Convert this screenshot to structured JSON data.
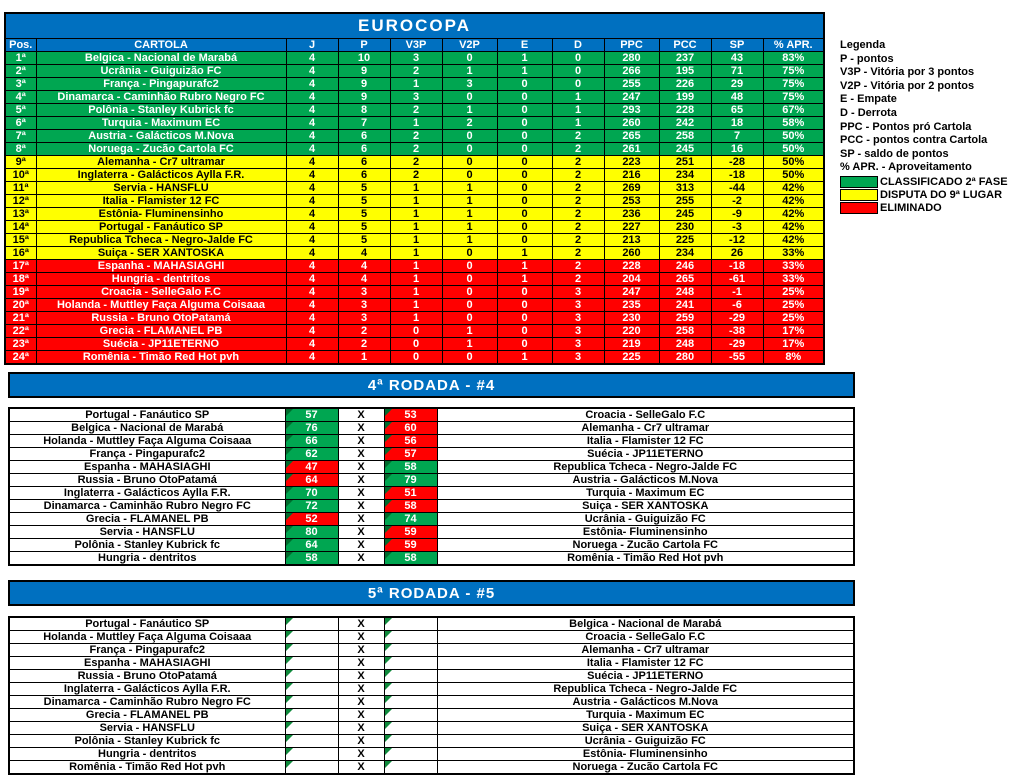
{
  "colors": {
    "blue": "#0070C0",
    "green": "#00A651",
    "yellow": "#FFFF00",
    "red": "#FF0000",
    "tri_dark": "#006B2D",
    "tri_light": "#0F8A3C",
    "border": "#000000"
  },
  "standings": {
    "title": "EUROCOPA",
    "columns": [
      "Pos.",
      "CARTOLA",
      "J",
      "P",
      "V3P",
      "V2P",
      "E",
      "D",
      "PPC",
      "PCC",
      "SP",
      "% APR."
    ],
    "rows": [
      {
        "pos": "1ª",
        "team": "Belgica - Nacional de Marabá",
        "j": "4",
        "p": "10",
        "v3p": "3",
        "v2p": "0",
        "e": "1",
        "d": "0",
        "ppc": "280",
        "pcc": "237",
        "sp": "43",
        "apr": "83%",
        "zone": "green"
      },
      {
        "pos": "2ª",
        "team": "Ucrânia - Guiguizão FC",
        "j": "4",
        "p": "9",
        "v3p": "2",
        "v2p": "1",
        "e": "1",
        "d": "0",
        "ppc": "266",
        "pcc": "195",
        "sp": "71",
        "apr": "75%",
        "zone": "green"
      },
      {
        "pos": "3ª",
        "team": "França - Pingapurafc2",
        "j": "4",
        "p": "9",
        "v3p": "1",
        "v2p": "3",
        "e": "0",
        "d": "0",
        "ppc": "255",
        "pcc": "226",
        "sp": "29",
        "apr": "75%",
        "zone": "green"
      },
      {
        "pos": "4ª",
        "team": "Dinamarca - Caminhão Rubro Negro FC",
        "j": "4",
        "p": "9",
        "v3p": "3",
        "v2p": "0",
        "e": "0",
        "d": "1",
        "ppc": "247",
        "pcc": "199",
        "sp": "48",
        "apr": "75%",
        "zone": "green"
      },
      {
        "pos": "5ª",
        "team": "Polônia - Stanley Kubrick fc",
        "j": "4",
        "p": "8",
        "v3p": "2",
        "v2p": "1",
        "e": "0",
        "d": "1",
        "ppc": "293",
        "pcc": "228",
        "sp": "65",
        "apr": "67%",
        "zone": "green"
      },
      {
        "pos": "6ª",
        "team": "Turquia - Maximum EC",
        "j": "4",
        "p": "7",
        "v3p": "1",
        "v2p": "2",
        "e": "0",
        "d": "1",
        "ppc": "260",
        "pcc": "242",
        "sp": "18",
        "apr": "58%",
        "zone": "green"
      },
      {
        "pos": "7ª",
        "team": "Austria - Galácticos M.Nova",
        "j": "4",
        "p": "6",
        "v3p": "2",
        "v2p": "0",
        "e": "0",
        "d": "2",
        "ppc": "265",
        "pcc": "258",
        "sp": "7",
        "apr": "50%",
        "zone": "green"
      },
      {
        "pos": "8ª",
        "team": "Noruega - Zucão Cartola FC",
        "j": "4",
        "p": "6",
        "v3p": "2",
        "v2p": "0",
        "e": "0",
        "d": "2",
        "ppc": "261",
        "pcc": "245",
        "sp": "16",
        "apr": "50%",
        "zone": "green"
      },
      {
        "pos": "9ª",
        "team": "Alemanha - Cr7 ultramar",
        "j": "4",
        "p": "6",
        "v3p": "2",
        "v2p": "0",
        "e": "0",
        "d": "2",
        "ppc": "223",
        "pcc": "251",
        "sp": "-28",
        "apr": "50%",
        "zone": "yellow"
      },
      {
        "pos": "10ª",
        "team": "Inglaterra - Galácticos Aylla F.R.",
        "j": "4",
        "p": "6",
        "v3p": "2",
        "v2p": "0",
        "e": "0",
        "d": "2",
        "ppc": "216",
        "pcc": "234",
        "sp": "-18",
        "apr": "50%",
        "zone": "yellow"
      },
      {
        "pos": "11ª",
        "team": "Servia - HANSFLU",
        "j": "4",
        "p": "5",
        "v3p": "1",
        "v2p": "1",
        "e": "0",
        "d": "2",
        "ppc": "269",
        "pcc": "313",
        "sp": "-44",
        "apr": "42%",
        "zone": "yellow"
      },
      {
        "pos": "12ª",
        "team": "Italia - Flamister 12 FC",
        "j": "4",
        "p": "5",
        "v3p": "1",
        "v2p": "1",
        "e": "0",
        "d": "2",
        "ppc": "253",
        "pcc": "255",
        "sp": "-2",
        "apr": "42%",
        "zone": "yellow"
      },
      {
        "pos": "13ª",
        "team": "Estônia- Fluminensinho",
        "j": "4",
        "p": "5",
        "v3p": "1",
        "v2p": "1",
        "e": "0",
        "d": "2",
        "ppc": "236",
        "pcc": "245",
        "sp": "-9",
        "apr": "42%",
        "zone": "yellow"
      },
      {
        "pos": "14ª",
        "team": "Portugal - Fanáutico SP",
        "j": "4",
        "p": "5",
        "v3p": "1",
        "v2p": "1",
        "e": "0",
        "d": "2",
        "ppc": "227",
        "pcc": "230",
        "sp": "-3",
        "apr": "42%",
        "zone": "yellow"
      },
      {
        "pos": "15ª",
        "team": "Republica Tcheca - Negro-Jalde FC",
        "j": "4",
        "p": "5",
        "v3p": "1",
        "v2p": "1",
        "e": "0",
        "d": "2",
        "ppc": "213",
        "pcc": "225",
        "sp": "-12",
        "apr": "42%",
        "zone": "yellow"
      },
      {
        "pos": "16ª",
        "team": "Suiça - SER XANTOSKA",
        "j": "4",
        "p": "4",
        "v3p": "1",
        "v2p": "0",
        "e": "1",
        "d": "2",
        "ppc": "260",
        "pcc": "234",
        "sp": "26",
        "apr": "33%",
        "zone": "yellow"
      },
      {
        "pos": "17ª",
        "team": "Espanha - MAHASIAGHI",
        "j": "4",
        "p": "4",
        "v3p": "1",
        "v2p": "0",
        "e": "1",
        "d": "2",
        "ppc": "228",
        "pcc": "246",
        "sp": "-18",
        "apr": "33%",
        "zone": "red"
      },
      {
        "pos": "18ª",
        "team": "Hungria - dentritos",
        "j": "4",
        "p": "4",
        "v3p": "1",
        "v2p": "0",
        "e": "1",
        "d": "2",
        "ppc": "204",
        "pcc": "265",
        "sp": "-61",
        "apr": "33%",
        "zone": "red"
      },
      {
        "pos": "19ª",
        "team": "Croacia - SelleGalo F.C",
        "j": "4",
        "p": "3",
        "v3p": "1",
        "v2p": "0",
        "e": "0",
        "d": "3",
        "ppc": "247",
        "pcc": "248",
        "sp": "-1",
        "apr": "25%",
        "zone": "red"
      },
      {
        "pos": "20ª",
        "team": "Holanda - Muttley Faça Alguma Coisaaa",
        "j": "4",
        "p": "3",
        "v3p": "1",
        "v2p": "0",
        "e": "0",
        "d": "3",
        "ppc": "235",
        "pcc": "241",
        "sp": "-6",
        "apr": "25%",
        "zone": "red"
      },
      {
        "pos": "21ª",
        "team": "Russia - Bruno OtoPatamá",
        "j": "4",
        "p": "3",
        "v3p": "1",
        "v2p": "0",
        "e": "0",
        "d": "3",
        "ppc": "230",
        "pcc": "259",
        "sp": "-29",
        "apr": "25%",
        "zone": "red"
      },
      {
        "pos": "22ª",
        "team": "Grecia - FLAMANEL PB",
        "j": "4",
        "p": "2",
        "v3p": "0",
        "v2p": "1",
        "e": "0",
        "d": "3",
        "ppc": "220",
        "pcc": "258",
        "sp": "-38",
        "apr": "17%",
        "zone": "red"
      },
      {
        "pos": "23ª",
        "team": "Suécia - JP11ETERNO",
        "j": "4",
        "p": "2",
        "v3p": "0",
        "v2p": "1",
        "e": "0",
        "d": "3",
        "ppc": "219",
        "pcc": "248",
        "sp": "-29",
        "apr": "17%",
        "zone": "red"
      },
      {
        "pos": "24ª",
        "team": "Romênia - Timão Red Hot pvh",
        "j": "4",
        "p": "1",
        "v3p": "0",
        "v2p": "0",
        "e": "1",
        "d": "3",
        "ppc": "225",
        "pcc": "280",
        "sp": "-55",
        "apr": "8%",
        "zone": "red"
      }
    ]
  },
  "legend": {
    "title": "Legenda",
    "lines": [
      "P - pontos",
      "V3P - Vitória por 3 pontos",
      "V2P - Vitória por 2 pontos",
      "E - Empate",
      "D - Derrota",
      "PPC - Pontos pró Cartola",
      "PCC - pontos contra Cartola",
      "SP - saldo de pontos",
      "% APR. - Aproveitamento"
    ],
    "zones": [
      {
        "color": "#00A651",
        "label": "CLASSIFICADO 2ª FASE"
      },
      {
        "color": "#FFFF00",
        "label": "DISPUTA DO 9ª LUGAR"
      },
      {
        "color": "#FF0000",
        "label": "ELIMINADO"
      }
    ]
  },
  "rounds": [
    {
      "title": "4ª RODADA - #4",
      "separator": "X",
      "matches": [
        {
          "home": "Portugal - Fanáutico SP",
          "home_score": "57",
          "home_color": "green",
          "away_score": "53",
          "away_color": "red",
          "away": "Croacia - SelleGalo F.C"
        },
        {
          "home": "Belgica - Nacional de Marabá",
          "home_score": "76",
          "home_color": "green",
          "away_score": "60",
          "away_color": "red",
          "away": "Alemanha - Cr7 ultramar"
        },
        {
          "home": "Holanda - Muttley Faça Alguma Coisaaa",
          "home_score": "66",
          "home_color": "green",
          "away_score": "56",
          "away_color": "red",
          "away": "Italia - Flamister 12 FC"
        },
        {
          "home": "França - Pingapurafc2",
          "home_score": "62",
          "home_color": "green",
          "away_score": "57",
          "away_color": "red",
          "away": "Suécia - JP11ETERNO"
        },
        {
          "home": "Espanha - MAHASIAGHI",
          "home_score": "47",
          "home_color": "red",
          "away_score": "58",
          "away_color": "green",
          "away": "Republica Tcheca - Negro-Jalde FC"
        },
        {
          "home": "Russia - Bruno OtoPatamá",
          "home_score": "64",
          "home_color": "red",
          "away_score": "79",
          "away_color": "green",
          "away": "Austria - Galácticos M.Nova"
        },
        {
          "home": "Inglaterra - Galácticos Aylla F.R.",
          "home_score": "70",
          "home_color": "green",
          "away_score": "51",
          "away_color": "red",
          "away": "Turquia - Maximum EC"
        },
        {
          "home": "Dinamarca - Caminhão Rubro Negro FC",
          "home_score": "72",
          "home_color": "green",
          "away_score": "58",
          "away_color": "red",
          "away": "Suiça - SER XANTOSKA"
        },
        {
          "home": "Grecia - FLAMANEL PB",
          "home_score": "52",
          "home_color": "red",
          "away_score": "74",
          "away_color": "green",
          "away": "Ucrânia - Guiguizão FC"
        },
        {
          "home": "Servia - HANSFLU",
          "home_score": "80",
          "home_color": "green",
          "away_score": "59",
          "away_color": "red",
          "away": "Estônia- Fluminensinho"
        },
        {
          "home": "Polônia - Stanley Kubrick fc",
          "home_score": "64",
          "home_color": "green",
          "away_score": "59",
          "away_color": "red",
          "away": "Noruega - Zucão Cartola FC"
        },
        {
          "home": "Hungria - dentritos",
          "home_score": "58",
          "home_color": "green",
          "away_score": "58",
          "away_color": "green",
          "away": "Romênia - Timão Red Hot pvh"
        }
      ]
    },
    {
      "title": "5ª RODADA - #5",
      "separator": "X",
      "matches": [
        {
          "home": "Portugal - Fanáutico SP",
          "home_score": "",
          "home_color": "",
          "away_score": "",
          "away_color": "",
          "away": "Belgica - Nacional de Marabá"
        },
        {
          "home": "Holanda - Muttley Faça Alguma Coisaaa",
          "home_score": "",
          "home_color": "",
          "away_score": "",
          "away_color": "",
          "away": "Croacia - SelleGalo F.C"
        },
        {
          "home": "França - Pingapurafc2",
          "home_score": "",
          "home_color": "",
          "away_score": "",
          "away_color": "",
          "away": "Alemanha - Cr7 ultramar"
        },
        {
          "home": "Espanha - MAHASIAGHI",
          "home_score": "",
          "home_color": "",
          "away_score": "",
          "away_color": "",
          "away": "Italia - Flamister 12 FC"
        },
        {
          "home": "Russia - Bruno OtoPatamá",
          "home_score": "",
          "home_color": "",
          "away_score": "",
          "away_color": "",
          "away": "Suécia - JP11ETERNO"
        },
        {
          "home": "Inglaterra - Galácticos Aylla F.R.",
          "home_score": "",
          "home_color": "",
          "away_score": "",
          "away_color": "",
          "away": "Republica Tcheca - Negro-Jalde FC"
        },
        {
          "home": "Dinamarca - Caminhão Rubro Negro FC",
          "home_score": "",
          "home_color": "",
          "away_score": "",
          "away_color": "",
          "away": "Austria - Galácticos M.Nova"
        },
        {
          "home": "Grecia - FLAMANEL PB",
          "home_score": "",
          "home_color": "",
          "away_score": "",
          "away_color": "",
          "away": "Turquia - Maximum EC"
        },
        {
          "home": "Servia - HANSFLU",
          "home_score": "",
          "home_color": "",
          "away_score": "",
          "away_color": "",
          "away": "Suiça - SER XANTOSKA"
        },
        {
          "home": "Polônia - Stanley Kubrick fc",
          "home_score": "",
          "home_color": "",
          "away_score": "",
          "away_color": "",
          "away": "Ucrânia - Guiguizão FC"
        },
        {
          "home": "Hungria - dentritos",
          "home_score": "",
          "home_color": "",
          "away_score": "",
          "away_color": "",
          "away": "Estônia- Fluminensinho"
        },
        {
          "home": "Romênia - Timão Red Hot pvh",
          "home_score": "",
          "home_color": "",
          "away_score": "",
          "away_color": "",
          "away": "Noruega - Zucão Cartola FC"
        }
      ]
    }
  ]
}
